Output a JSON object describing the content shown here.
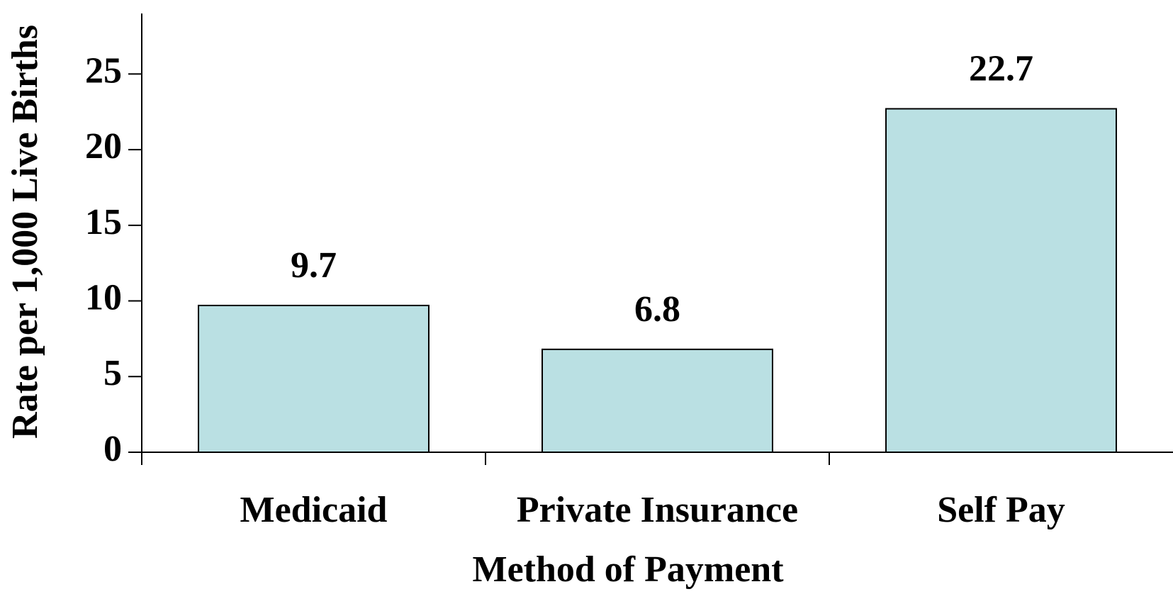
{
  "chart_data": {
    "type": "bar",
    "xlabel": "Method of Payment",
    "ylabel": "Rate per 1,000 Live Births",
    "categories": [
      "Medicaid",
      "Private Insurance",
      "Self Pay"
    ],
    "values": [
      9.7,
      6.8,
      22.7
    ],
    "color": "#bae0e3",
    "ylim": [
      0,
      29
    ],
    "yticks": [
      0,
      5,
      10,
      15,
      20,
      25
    ],
    "grid": false
  }
}
